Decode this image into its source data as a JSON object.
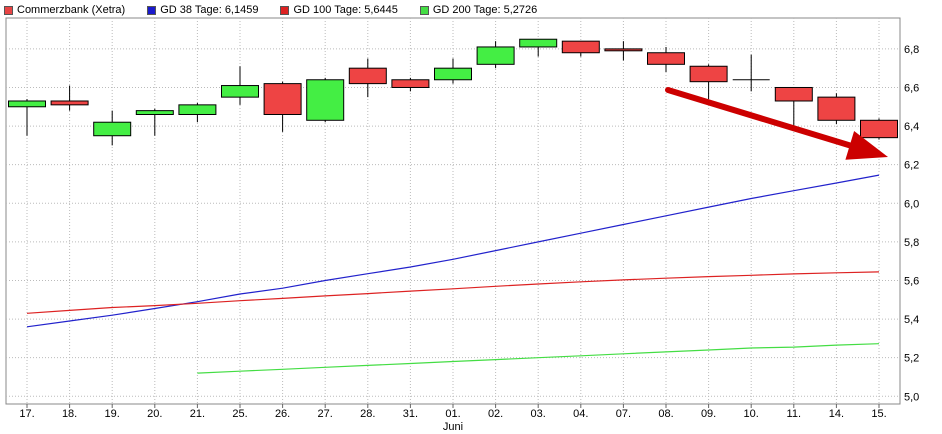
{
  "legend": [
    {
      "label": "Commerzbank (Xetra)",
      "color": "#e84444"
    },
    {
      "label": "GD 38 Tage: 6,1459",
      "color": "#1a1acc"
    },
    {
      "label": "GD 100 Tage: 5,6445",
      "color": "#dd2222"
    },
    {
      "label": "GD 200 Tage: 5,2726",
      "color": "#44dd44"
    }
  ],
  "colors": {
    "up": "#44ee44",
    "down": "#ee4444",
    "neutral": "#000000",
    "ma38": "#2222cc",
    "ma100": "#dd2222",
    "ma200": "#44dd44",
    "arrow": "#cc0000",
    "grid": "#bbbbbb"
  },
  "chart_data": {
    "type": "candlestick",
    "title": "",
    "month_label": "Juni",
    "ylim": [
      4.96,
      6.96
    ],
    "y_ticks": [
      "6,8",
      "6,6",
      "6,4",
      "6,2",
      "6,0",
      "5,8",
      "5,6",
      "5,4",
      "5,2",
      "5,0"
    ],
    "categories": [
      "17.",
      "18.",
      "19.",
      "20.",
      "21.",
      "25.",
      "26.",
      "27.",
      "28.",
      "31.",
      "01.",
      "02.",
      "03.",
      "04.",
      "07.",
      "08.",
      "09.",
      "10.",
      "11.",
      "14.",
      "15."
    ],
    "candles": [
      {
        "open": 6.5,
        "close": 6.53,
        "high": 6.54,
        "low": 6.35
      },
      {
        "open": 6.53,
        "close": 6.51,
        "high": 6.61,
        "low": 6.48
      },
      {
        "open": 6.35,
        "close": 6.42,
        "high": 6.48,
        "low": 6.3
      },
      {
        "open": 6.46,
        "close": 6.48,
        "high": 6.49,
        "low": 6.35
      },
      {
        "open": 6.46,
        "close": 6.51,
        "high": 6.52,
        "low": 6.42
      },
      {
        "open": 6.55,
        "close": 6.61,
        "high": 6.71,
        "low": 6.51
      },
      {
        "open": 6.62,
        "close": 6.46,
        "high": 6.63,
        "low": 6.37
      },
      {
        "open": 6.43,
        "close": 6.64,
        "high": 6.65,
        "low": 6.42
      },
      {
        "open": 6.7,
        "close": 6.62,
        "high": 6.75,
        "low": 6.55
      },
      {
        "open": 6.64,
        "close": 6.6,
        "high": 6.65,
        "low": 6.58
      },
      {
        "open": 6.64,
        "close": 6.7,
        "high": 6.75,
        "low": 6.62
      },
      {
        "open": 6.72,
        "close": 6.81,
        "high": 6.84,
        "low": 6.7
      },
      {
        "open": 6.81,
        "close": 6.85,
        "high": 6.85,
        "low": 6.76
      },
      {
        "open": 6.84,
        "close": 6.78,
        "high": 6.84,
        "low": 6.76
      },
      {
        "open": 6.8,
        "close": 6.79,
        "high": 6.84,
        "low": 6.74
      },
      {
        "open": 6.78,
        "close": 6.72,
        "high": 6.81,
        "low": 6.68
      },
      {
        "open": 6.71,
        "close": 6.63,
        "high": 6.72,
        "low": 6.54
      },
      {
        "open": 6.64,
        "close": 6.64,
        "high": 6.77,
        "low": 6.58
      },
      {
        "open": 6.6,
        "close": 6.53,
        "high": 6.6,
        "low": 6.38
      },
      {
        "open": 6.55,
        "close": 6.43,
        "high": 6.57,
        "low": 6.41
      },
      {
        "open": 6.43,
        "close": 6.34,
        "high": 6.44,
        "low": 6.33
      }
    ],
    "moving_averages": [
      {
        "name": "GD 38 Tage",
        "color": "#2222cc",
        "start_index": 0,
        "values": [
          5.36,
          5.39,
          5.42,
          5.455,
          5.49,
          5.53,
          5.56,
          5.6,
          5.635,
          5.67,
          5.71,
          5.755,
          5.8,
          5.845,
          5.89,
          5.935,
          5.98,
          6.025,
          6.065,
          6.105,
          6.146
        ]
      },
      {
        "name": "GD 100 Tage",
        "color": "#dd2222",
        "start_index": 0,
        "values": [
          5.43,
          5.445,
          5.46,
          5.47,
          5.482,
          5.495,
          5.507,
          5.52,
          5.532,
          5.545,
          5.557,
          5.57,
          5.582,
          5.593,
          5.603,
          5.612,
          5.62,
          5.627,
          5.634,
          5.64,
          5.6445
        ]
      },
      {
        "name": "GD 200 Tage",
        "color": "#44dd44",
        "start_index": 4,
        "values": [
          5.12,
          5.13,
          5.14,
          5.15,
          5.16,
          5.17,
          5.18,
          5.19,
          5.2,
          5.21,
          5.22,
          5.23,
          5.24,
          5.25,
          5.255,
          5.265,
          5.2726
        ]
      }
    ]
  }
}
